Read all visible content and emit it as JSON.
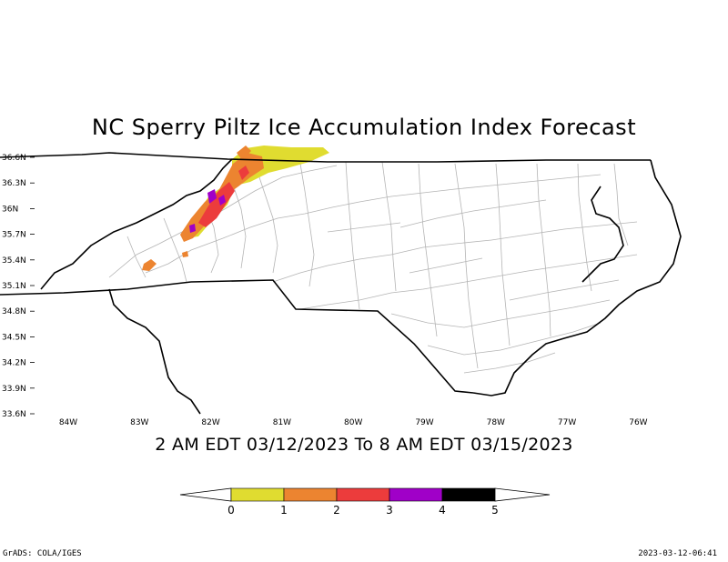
{
  "map": {
    "title": "NC Sperry Piltz Ice Accumulation Index Forecast",
    "valid_period": "2 AM EDT 03/12/2023 To 8 AM EDT 03/15/2023",
    "latitude_labels": [
      "36.6N",
      "36.3N",
      "36N",
      "35.7N",
      "35.4N",
      "35.1N",
      "34.8N",
      "34.5N",
      "34.2N",
      "33.9N",
      "33.6N"
    ],
    "longitude_labels": [
      "84W",
      "83W",
      "82W",
      "81W",
      "80W",
      "79W",
      "78W",
      "77W",
      "76W"
    ],
    "colors": {
      "ice_0_1": "#e0dc30",
      "ice_1_2": "#ec8430",
      "ice_2_3": "#ec3c3c",
      "ice_3_4": "#a000c8",
      "ice_4_5": "#000000",
      "state_border": "#000000",
      "county_border": "#b4b4b4"
    },
    "region_shown": "North Carolina"
  },
  "colorbar": {
    "tick_labels": [
      "0",
      "1",
      "2",
      "3",
      "4",
      "5"
    ]
  },
  "footer": {
    "software": "GrADS: COLA/IGES",
    "timestamp": "2023-03-12-06:41"
  }
}
